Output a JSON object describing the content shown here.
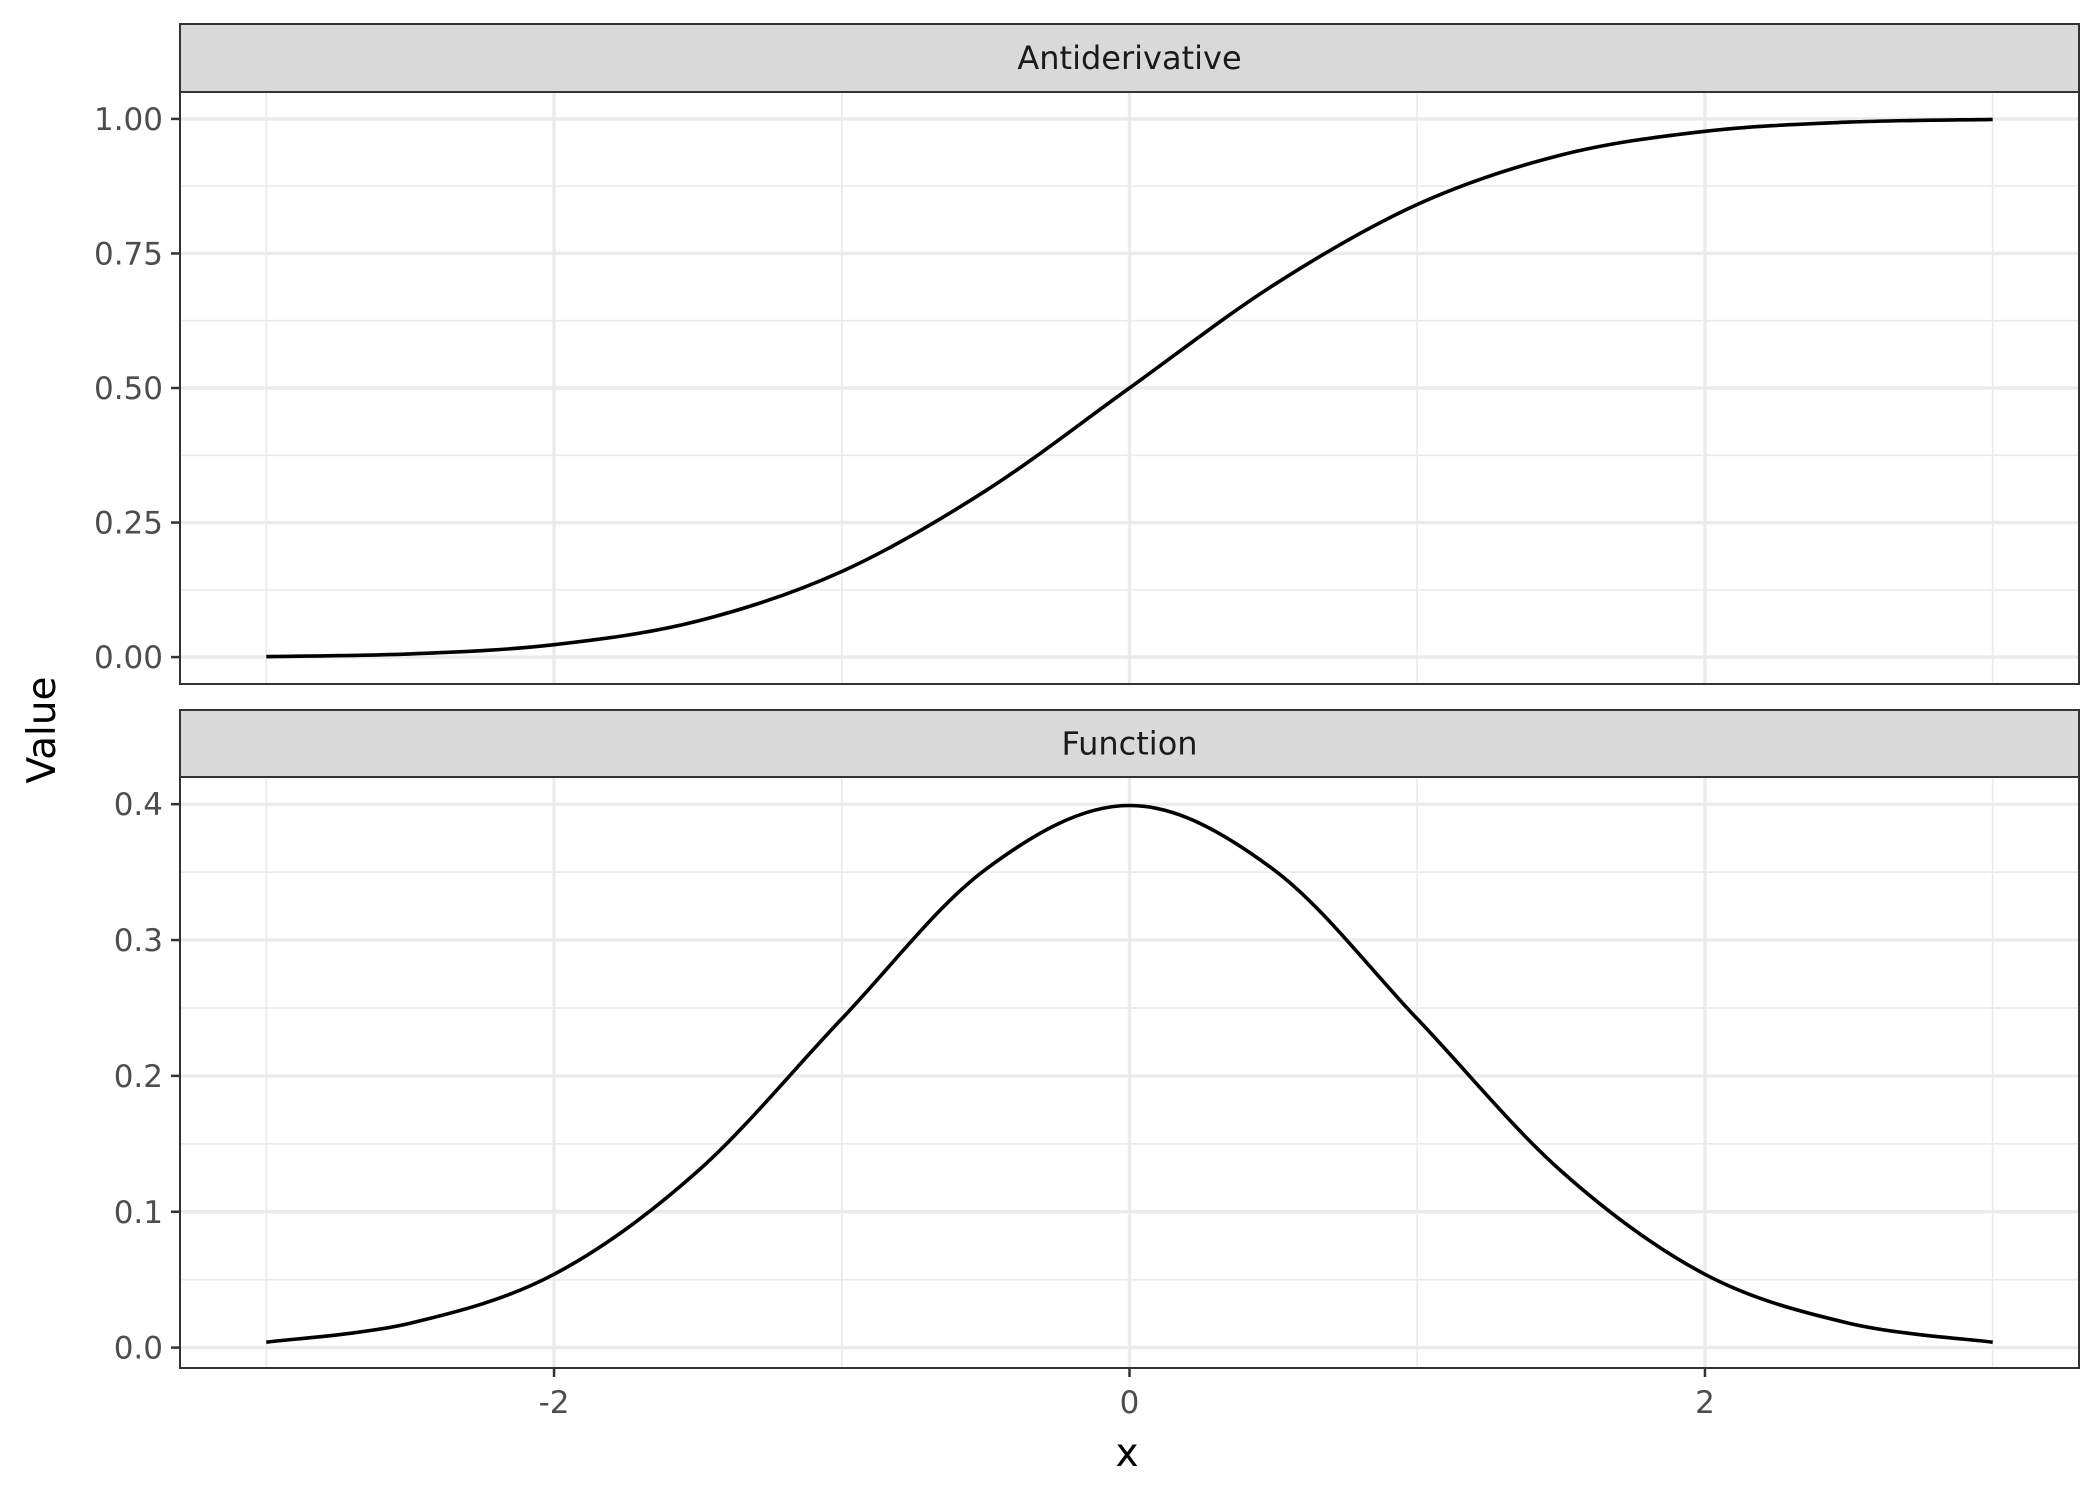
{
  "chart_data": {
    "type": "line",
    "xlabel": "x",
    "ylabel": "Value",
    "facets": [
      {
        "label": "Antiderivative",
        "ylim": [
          -0.05,
          1.05
        ],
        "yticks": [
          0.0,
          0.25,
          0.5,
          0.75,
          1.0
        ],
        "ytick_labels": [
          "0.00",
          "0.25",
          "0.50",
          "0.75",
          "1.00"
        ],
        "x": [
          -3.0,
          -2.5,
          -2.0,
          -1.5,
          -1.0,
          -0.5,
          0.0,
          0.5,
          1.0,
          1.5,
          2.0,
          2.5,
          3.0
        ],
        "y": [
          0.001,
          0.006,
          0.023,
          0.067,
          0.159,
          0.309,
          0.5,
          0.691,
          0.841,
          0.933,
          0.977,
          0.994,
          0.999
        ]
      },
      {
        "label": "Function",
        "ylim": [
          -0.015,
          0.42
        ],
        "yticks": [
          0.0,
          0.1,
          0.2,
          0.3,
          0.4
        ],
        "ytick_labels": [
          "0.0",
          "0.1",
          "0.2",
          "0.3",
          "0.4"
        ],
        "x": [
          -3.0,
          -2.5,
          -2.0,
          -1.5,
          -1.0,
          -0.5,
          0.0,
          0.5,
          1.0,
          1.5,
          2.0,
          2.5,
          3.0
        ],
        "y": [
          0.004,
          0.018,
          0.054,
          0.13,
          0.242,
          0.352,
          0.399,
          0.352,
          0.242,
          0.13,
          0.054,
          0.018,
          0.004
        ]
      }
    ],
    "xlim": [
      -3.3,
      3.3
    ],
    "xticks": [
      -2,
      0,
      2
    ],
    "xtick_labels": [
      "-2",
      "0",
      "2"
    ],
    "grid": true,
    "colors": {
      "line": "#000000",
      "strip": "#d9d9d9",
      "grid": "#ebebeb"
    }
  }
}
